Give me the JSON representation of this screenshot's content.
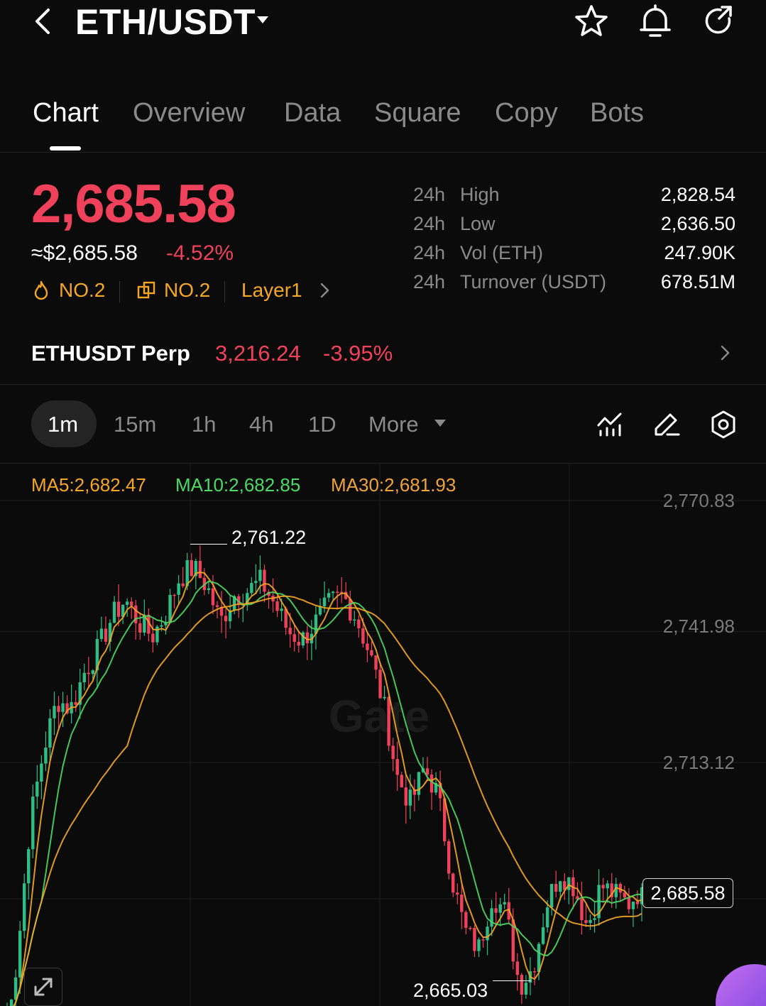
{
  "header": {
    "pair": "ETH/USDT",
    "icons": [
      "back-icon",
      "caret-down-icon",
      "star-icon",
      "bell-icon",
      "share-icon"
    ]
  },
  "tabs": [
    {
      "label": "Chart",
      "active": true
    },
    {
      "label": "Overview",
      "active": false
    },
    {
      "label": "Data",
      "active": false
    },
    {
      "label": "Square",
      "active": false
    },
    {
      "label": "Copy",
      "active": false
    },
    {
      "label": "Bots",
      "active": false
    }
  ],
  "price": {
    "last": "2,685.58",
    "usd": "≈$2,685.58",
    "change_pct": "-4.52%",
    "rank_hot": "NO.2",
    "rank_market": "NO.2",
    "category": "Layer1"
  },
  "stats": [
    {
      "period": "24h",
      "label": "High",
      "value": "2,828.54"
    },
    {
      "period": "24h",
      "label": "Low",
      "value": "2,636.50"
    },
    {
      "period": "24h",
      "label": "Vol (ETH)",
      "value": "247.90K"
    },
    {
      "period": "24h",
      "label": "Turnover (USDT)",
      "value": "678.51M"
    }
  ],
  "perp": {
    "name": "ETHUSDT Perp",
    "price": "3,216.24",
    "change_pct": "-3.95%"
  },
  "intervals": [
    {
      "label": "1m",
      "active": true
    },
    {
      "label": "15m",
      "active": false
    },
    {
      "label": "1h",
      "active": false
    },
    {
      "label": "4h",
      "active": false
    },
    {
      "label": "1D",
      "active": false
    }
  ],
  "more_label": "More",
  "colors": {
    "up": "#2ebd85",
    "down": "#f0415a",
    "ma5": "#f5a623",
    "ma10": "#4cd964",
    "ma30": "#f5a623",
    "accent": "#f5a623"
  },
  "chart": {
    "ma5": "MA5:2,682.47",
    "ma10": "MA10:2,682.85",
    "ma30": "MA30:2,681.93",
    "axis_labels": [
      "2,770.83",
      "2,741.98",
      "2,713.12"
    ],
    "high_label": "2,761.22",
    "low_label": "2,665.03",
    "current_price": "2,685.58"
  },
  "chart_data": {
    "type": "candlestick",
    "interval": "1m",
    "y_ticks": [
      2770.83,
      2741.98,
      2713.12
    ],
    "high": 2761.22,
    "low": 2665.03,
    "current": 2685.58,
    "close_path": [
      2655,
      2668,
      2700,
      2716,
      2727,
      2725,
      2733,
      2738,
      2745,
      2749,
      2744,
      2741,
      2746,
      2754,
      2756,
      2752,
      2744,
      2750,
      2751,
      2753,
      2748,
      2742,
      2740,
      2744,
      2748,
      2750,
      2745,
      2737,
      2726,
      2710,
      2704,
      2712,
      2706,
      2688,
      2676,
      2672,
      2684,
      2680,
      2664,
      2668,
      2682,
      2689,
      2686,
      2677,
      2686,
      2684,
      2682,
      2685.58
    ],
    "ma5_last": 2682.47,
    "ma10_last": 2682.85,
    "ma30_last": 2681.93
  }
}
